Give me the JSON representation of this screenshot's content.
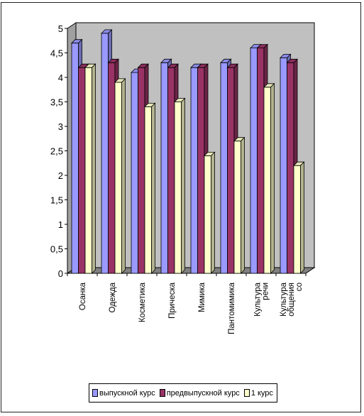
{
  "chart_data": {
    "type": "bar",
    "categories": [
      "Осанка",
      "Одежда",
      "Косметика",
      "Прическа",
      "Мимика",
      "Пантомимика",
      "Культура речи",
      "Культура общения со"
    ],
    "category_label_lines": [
      [
        "Осанка"
      ],
      [
        "Одежда"
      ],
      [
        "Косметика"
      ],
      [
        "Прическа"
      ],
      [
        "Мимика"
      ],
      [
        "Пантомимика"
      ],
      [
        "Культура",
        "речи"
      ],
      [
        "Культура",
        "общения",
        "со"
      ]
    ],
    "series": [
      {
        "name": "выпускной курс",
        "color": "#9999ff",
        "values": [
          4.7,
          4.9,
          4.1,
          4.3,
          4.2,
          4.3,
          4.6,
          4.4
        ]
      },
      {
        "name": "предвыпускной курс",
        "color": "#993366",
        "values": [
          4.2,
          4.3,
          4.2,
          4.2,
          4.2,
          4.2,
          4.6,
          4.3
        ]
      },
      {
        "name": "1 курс",
        "color": "#ffffcc",
        "values": [
          4.2,
          3.9,
          3.4,
          3.5,
          2.4,
          2.7,
          3.8,
          2.2
        ]
      }
    ],
    "yticks": [
      "0",
      "0,5",
      "1",
      "1,5",
      "2",
      "2,5",
      "3",
      "3,5",
      "4",
      "4,5",
      "5"
    ],
    "ylim": [
      0,
      5
    ],
    "grid": false,
    "legend_position": "bottom",
    "wall_color": "#c0c0c0",
    "three_d": true
  }
}
